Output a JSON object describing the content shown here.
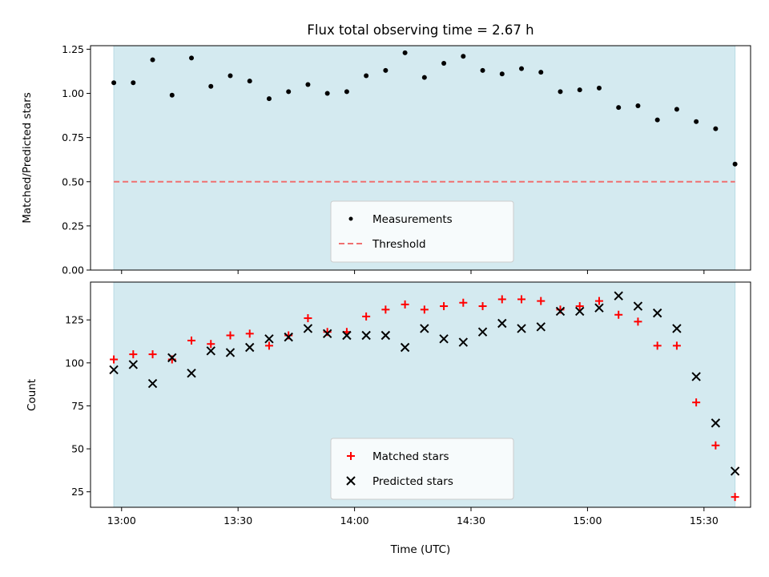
{
  "chart_data": [
    {
      "type": "scatter",
      "title": "Flux total observing time = 2.67 h",
      "xlabel": "",
      "ylabel": "Matched/Predicted stars",
      "xlim": [
        "12:52",
        "15:42"
      ],
      "ylim": [
        0,
        1.27
      ],
      "yticks": [
        0.0,
        0.25,
        0.5,
        0.75,
        1.0,
        1.25
      ],
      "ytick_labels": [
        "0.00",
        "0.25",
        "0.50",
        "0.75",
        "1.00",
        "1.25"
      ],
      "xticks": [
        "13:00",
        "13:30",
        "14:00",
        "14:30",
        "15:00",
        "15:30"
      ],
      "shaded_span": [
        "12:58",
        "15:38"
      ],
      "shaded_color": "#d4eaf0",
      "legend_position": "lower center",
      "series": [
        {
          "name": "Measurements",
          "marker": "dot",
          "color": "#000000",
          "x": [
            "12:58",
            "13:03",
            "13:08",
            "13:13",
            "13:18",
            "13:23",
            "13:28",
            "13:33",
            "13:38",
            "13:43",
            "13:48",
            "13:53",
            "13:58",
            "14:03",
            "14:08",
            "14:13",
            "14:18",
            "14:23",
            "14:28",
            "14:33",
            "14:38",
            "14:43",
            "14:48",
            "14:53",
            "14:58",
            "15:03",
            "15:08",
            "15:13",
            "15:18",
            "15:23",
            "15:28",
            "15:33",
            "15:38"
          ],
          "y": [
            1.06,
            1.06,
            1.19,
            0.99,
            1.2,
            1.04,
            1.1,
            1.07,
            0.97,
            1.01,
            1.05,
            1.0,
            1.01,
            1.1,
            1.13,
            1.23,
            1.09,
            1.17,
            1.21,
            1.13,
            1.11,
            1.14,
            1.12,
            1.01,
            1.02,
            1.03,
            0.92,
            0.93,
            0.85,
            0.91,
            0.84,
            0.8,
            0.6
          ]
        },
        {
          "name": "Threshold",
          "marker": "dashed-line",
          "color": "#f07070",
          "y_constant": 0.5
        }
      ]
    },
    {
      "type": "scatter",
      "title": "",
      "xlabel": "Time (UTC)",
      "ylabel": "Count",
      "xlim": [
        "12:52",
        "15:42"
      ],
      "ylim": [
        16,
        147
      ],
      "yticks": [
        25,
        50,
        75,
        100,
        125
      ],
      "ytick_labels": [
        "25",
        "50",
        "75",
        "100",
        "125"
      ],
      "xticks": [
        "13:00",
        "13:30",
        "14:00",
        "14:30",
        "15:00",
        "15:30"
      ],
      "xtick_labels": [
        "13:00",
        "13:30",
        "14:00",
        "14:30",
        "15:00",
        "15:30"
      ],
      "shaded_span": [
        "12:58",
        "15:38"
      ],
      "shaded_color": "#d4eaf0",
      "legend_position": "lower center",
      "series": [
        {
          "name": "Matched stars",
          "marker": "plus",
          "color": "#ff0000",
          "x": [
            "12:58",
            "13:03",
            "13:08",
            "13:13",
            "13:18",
            "13:23",
            "13:28",
            "13:33",
            "13:38",
            "13:43",
            "13:48",
            "13:53",
            "13:58",
            "14:03",
            "14:08",
            "14:13",
            "14:18",
            "14:23",
            "14:28",
            "14:33",
            "14:38",
            "14:43",
            "14:48",
            "14:53",
            "14:58",
            "15:03",
            "15:08",
            "15:13",
            "15:18",
            "15:23",
            "15:28",
            "15:33",
            "15:38"
          ],
          "y": [
            102,
            105,
            105,
            102,
            113,
            111,
            116,
            117,
            110,
            116,
            126,
            118,
            118,
            127,
            131,
            134,
            131,
            133,
            135,
            133,
            137,
            137,
            136,
            131,
            133,
            136,
            128,
            124,
            110,
            110,
            77,
            52,
            22
          ]
        },
        {
          "name": "Predicted stars",
          "marker": "x",
          "color": "#000000",
          "x": [
            "12:58",
            "13:03",
            "13:08",
            "13:13",
            "13:18",
            "13:23",
            "13:28",
            "13:33",
            "13:38",
            "13:43",
            "13:48",
            "13:53",
            "13:58",
            "14:03",
            "14:08",
            "14:13",
            "14:18",
            "14:23",
            "14:28",
            "14:33",
            "14:38",
            "14:43",
            "14:48",
            "14:53",
            "14:58",
            "15:03",
            "15:08",
            "15:13",
            "15:18",
            "15:23",
            "15:28",
            "15:33",
            "15:38"
          ],
          "y": [
            96,
            99,
            88,
            103,
            94,
            107,
            106,
            109,
            114,
            115,
            120,
            117,
            116,
            116,
            116,
            109,
            120,
            114,
            112,
            118,
            123,
            120,
            121,
            130,
            130,
            132,
            139,
            133,
            129,
            120,
            92,
            65,
            37
          ]
        }
      ]
    }
  ]
}
